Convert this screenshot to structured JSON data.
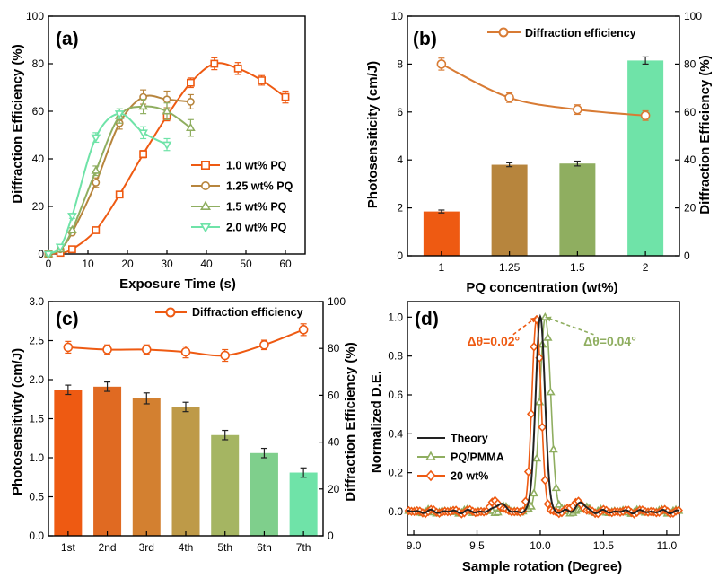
{
  "colors": {
    "orange": "#ee5a12",
    "brown": "#b7853d",
    "olive": "#8fae60",
    "teal": "#6fe3a8",
    "line_b": "#d87b34"
  },
  "chart_data": [
    {
      "panel": "(a)",
      "type": "line",
      "xlabel": "Exposure Time (s)",
      "ylabel": "Diffraction Efficiency (%)",
      "xlim": [
        0,
        65
      ],
      "ylim": [
        0,
        100
      ],
      "xticks": [
        "0",
        "10",
        "20",
        "30",
        "40",
        "50",
        "60"
      ],
      "yticks": [
        "0",
        "20",
        "40",
        "60",
        "80",
        "100"
      ],
      "legend_position": "lower-right",
      "series": [
        {
          "name": "1.0 wt% PQ",
          "color": "#ee5a12",
          "marker": "square",
          "x": [
            0,
            3,
            6,
            12,
            18,
            24,
            30,
            36,
            42,
            48,
            54,
            60
          ],
          "y": [
            0,
            0.5,
            2,
            10,
            25,
            42,
            58,
            72,
            80,
            78,
            73,
            66
          ],
          "err": [
            0,
            0,
            0.5,
            1,
            1,
            1.5,
            2,
            2,
            2.5,
            2.5,
            2,
            2.5
          ]
        },
        {
          "name": "1.25 wt% PQ",
          "color": "#b7853d",
          "marker": "circle",
          "x": [
            0,
            3,
            6,
            12,
            18,
            24,
            30,
            36
          ],
          "y": [
            0,
            2,
            9,
            30,
            55,
            66,
            65,
            64
          ],
          "err": [
            0,
            0,
            1,
            2,
            2.5,
            3,
            3.5,
            3
          ]
        },
        {
          "name": "1.5 wt% PQ",
          "color": "#8fae60",
          "marker": "triangle-up",
          "x": [
            0,
            3,
            6,
            12,
            18,
            24,
            30,
            36
          ],
          "y": [
            0,
            2,
            10,
            35,
            58,
            62,
            60,
            53
          ],
          "err": [
            0,
            0,
            1,
            2,
            3,
            3,
            3.5,
            3.5
          ]
        },
        {
          "name": "2.0 wt% PQ",
          "color": "#6fe3a8",
          "marker": "triangle-down",
          "x": [
            0,
            3,
            6,
            12,
            18,
            24,
            30
          ],
          "y": [
            0,
            3,
            16,
            49,
            59,
            51,
            46
          ],
          "err": [
            0,
            0,
            1,
            2,
            2,
            2.5,
            2.5
          ]
        }
      ]
    },
    {
      "panel": "(b)",
      "type": "bar",
      "xlabel": "PQ concentration (wt%)",
      "ylabel": "Photosensiticity (cm/J)",
      "ylabel_right": "Diffraction Efficiency (%)",
      "categories": [
        "1",
        "1.25",
        "1.5",
        "2"
      ],
      "ylim": [
        0,
        10
      ],
      "yticks": [
        "0",
        "2",
        "4",
        "6",
        "8",
        "10"
      ],
      "ylim_right": [
        0,
        100
      ],
      "yticks_right": [
        "0",
        "20",
        "40",
        "60",
        "80",
        "100"
      ],
      "bars": {
        "values": [
          1.85,
          3.8,
          3.85,
          8.15
        ],
        "err": [
          0.06,
          0.08,
          0.1,
          0.15
        ],
        "colors": [
          "#ee5a12",
          "#b7853d",
          "#8fae60",
          "#6fe3a8"
        ]
      },
      "line_series": {
        "name": "Diffraction efficiency",
        "color": "#d87b34",
        "values": [
          80,
          66,
          61,
          58.5
        ],
        "err": [
          2.5,
          2,
          2,
          2
        ]
      },
      "legend_position": "top-right"
    },
    {
      "panel": "(c)",
      "type": "bar",
      "xlabel": "",
      "ylabel": "Photosensitivity (cm/J)",
      "ylabel_right": "Diffraction Efficiency (%)",
      "categories": [
        "1st",
        "2nd",
        "3rd",
        "4th",
        "5th",
        "6th",
        "7th"
      ],
      "ylim": [
        0,
        3.0
      ],
      "yticks": [
        "0.0",
        "0.5",
        "1.0",
        "1.5",
        "2.0",
        "2.5",
        "3.0"
      ],
      "ylim_right": [
        0,
        100
      ],
      "yticks_right": [
        "0",
        "20",
        "40",
        "60",
        "80",
        "100"
      ],
      "bars": {
        "values": [
          1.87,
          1.91,
          1.76,
          1.65,
          1.29,
          1.06,
          0.81
        ],
        "err": [
          0.06,
          0.06,
          0.07,
          0.06,
          0.06,
          0.06,
          0.06
        ],
        "colors": [
          "#ee5a12",
          "#e06a22",
          "#d38030",
          "#be9a48",
          "#a5b562",
          "#7fcf8c",
          "#6fe3a8"
        ]
      },
      "line_series": {
        "name": "Diffraction efficiency",
        "color": "#ee5a12",
        "values": [
          80.5,
          79.5,
          79.5,
          78.5,
          77,
          81.5,
          88
        ],
        "err": [
          2.5,
          2,
          2,
          2.5,
          2.5,
          2,
          2.5
        ]
      },
      "legend_position": "top-right"
    },
    {
      "panel": "(d)",
      "type": "line",
      "xlabel": "Sample rotation (Degree)",
      "ylabel": "Normalized D.E.",
      "xlim": [
        8.95,
        11.1
      ],
      "ylim": [
        -0.12,
        1.08
      ],
      "xticks": [
        "9.0",
        "9.5",
        "10.0",
        "10.5",
        "11.0"
      ],
      "yticks": [
        "0.0",
        "0.2",
        "0.4",
        "0.6",
        "0.8",
        "1.0"
      ],
      "legend_position": "lower-left",
      "annotations": [
        {
          "text": "Δθ=0.02°",
          "color": "#ee5a12",
          "x": 9.63,
          "y": 0.855,
          "points_to": [
            9.97,
            1.0
          ]
        },
        {
          "text": "Δθ=0.04°",
          "color": "#8fae60",
          "x": 10.55,
          "y": 0.855,
          "points_to": [
            10.04,
            1.0
          ]
        }
      ],
      "series": [
        {
          "name": "Theory",
          "color": "#222222",
          "marker": "none",
          "center": 10.0,
          "sigma": 0.052,
          "side_amp": 0.045,
          "noise": 0.01
        },
        {
          "name": "PQ/PMMA",
          "color": "#8fae60",
          "marker": "triangle-up",
          "center": 10.04,
          "sigma": 0.06,
          "side_amp": 0.02,
          "noise": 0.012
        },
        {
          "name": "20 wt%",
          "color": "#ee5a12",
          "marker": "diamond",
          "center": 9.97,
          "sigma": 0.05,
          "side_amp": 0.055,
          "noise": 0.012
        }
      ]
    }
  ]
}
